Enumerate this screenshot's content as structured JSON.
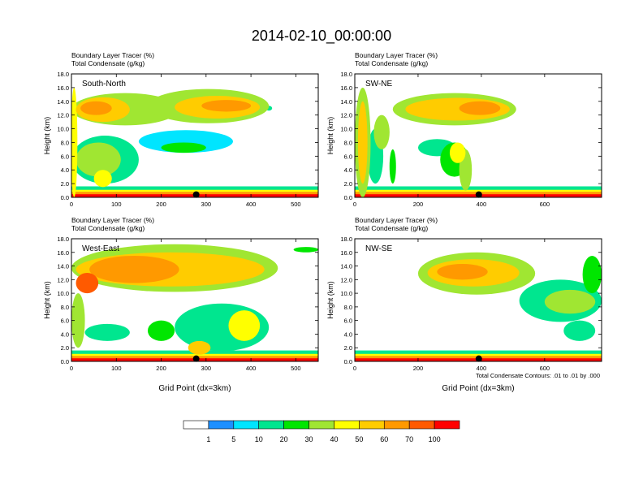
{
  "figure": {
    "title": "2014-02-10_00:00:00",
    "contour_note": "Total Condensate Contours: .01 to .01 by .000"
  },
  "chart_data": [
    {
      "type": "heatmap",
      "panel_label": "South-North",
      "subtitle_line1": "Boundary Layer Tracer    (%)",
      "subtitle_line2": "Total Condensate    (g/kg)",
      "ylabel": "Height (km)",
      "xlabel": "",
      "xlim": [
        0,
        550
      ],
      "ylim": [
        0,
        18
      ],
      "xticks": [
        0,
        100,
        200,
        300,
        400,
        500
      ],
      "yticks": [
        "0.0",
        "2.0",
        "4.0",
        "6.0",
        "8.0",
        "10.0",
        "12.0",
        "14.0",
        "16.0",
        "18.0"
      ],
      "marker_x": 278,
      "blobs": [
        {
          "x": [
            0,
            12
          ],
          "y": [
            0,
            16
          ],
          "level": 6
        },
        {
          "x": [
            0,
            240
          ],
          "y": [
            10.5,
            15.2
          ],
          "level": 5
        },
        {
          "x": [
            10,
            130
          ],
          "y": [
            11,
            14.6
          ],
          "level": 7
        },
        {
          "x": [
            170,
            440
          ],
          "y": [
            10.8,
            15.8
          ],
          "level": 5
        },
        {
          "x": [
            230,
            420
          ],
          "y": [
            11.5,
            14.8
          ],
          "level": 7
        },
        {
          "x": [
            290,
            400
          ],
          "y": [
            12.5,
            14.2
          ],
          "level": 8
        },
        {
          "x": [
            20,
            90
          ],
          "y": [
            12,
            14
          ],
          "level": 8
        },
        {
          "x": [
            440,
            440
          ],
          "y": [
            13,
            13
          ],
          "level": 3
        },
        {
          "x": [
            150,
            360
          ],
          "y": [
            6.5,
            9.8
          ],
          "level": 2
        },
        {
          "x": [
            0,
            150
          ],
          "y": [
            2,
            9
          ],
          "level": 3
        },
        {
          "x": [
            10,
            110
          ],
          "y": [
            3,
            8
          ],
          "level": 5
        },
        {
          "x": [
            50,
            90
          ],
          "y": [
            1.5,
            4
          ],
          "level": 6
        },
        {
          "x": [
            200,
            300
          ],
          "y": [
            6.5,
            8
          ],
          "level": 4
        }
      ]
    },
    {
      "type": "heatmap",
      "panel_label": "SW-NE",
      "subtitle_line1": "Boundary Layer Tracer    (%)",
      "subtitle_line2": "Total Condensate    (g/kg)",
      "ylabel": "Height (km)",
      "xlabel": "",
      "xlim": [
        0,
        780
      ],
      "ylim": [
        0,
        18
      ],
      "xticks": [
        0,
        200,
        400,
        600
      ],
      "yticks": [
        "0.0",
        "2.0",
        "4.0",
        "6.0",
        "8.0",
        "10.0",
        "12.0",
        "14.0",
        "16.0",
        "18.0"
      ],
      "marker_x": 392,
      "blobs": [
        {
          "x": [
            120,
            510
          ],
          "y": [
            10.5,
            15.2
          ],
          "level": 5
        },
        {
          "x": [
            160,
            490
          ],
          "y": [
            11.2,
            14.5
          ],
          "level": 7
        },
        {
          "x": [
            330,
            460
          ],
          "y": [
            12,
            14
          ],
          "level": 8
        },
        {
          "x": [
            0,
            50
          ],
          "y": [
            0,
            16
          ],
          "level": 5
        },
        {
          "x": [
            10,
            40
          ],
          "y": [
            2,
            14
          ],
          "level": 7
        },
        {
          "x": [
            40,
            90
          ],
          "y": [
            2,
            10
          ],
          "level": 3
        },
        {
          "x": [
            60,
            110
          ],
          "y": [
            7,
            12
          ],
          "level": 5
        },
        {
          "x": [
            270,
            360
          ],
          "y": [
            3,
            8
          ],
          "level": 4
        },
        {
          "x": [
            300,
            350
          ],
          "y": [
            5,
            8
          ],
          "level": 6
        },
        {
          "x": [
            200,
            320
          ],
          "y": [
            6,
            8.5
          ],
          "level": 3
        },
        {
          "x": [
            330,
            370
          ],
          "y": [
            1,
            7
          ],
          "level": 5
        },
        {
          "x": [
            110,
            130
          ],
          "y": [
            2,
            7
          ],
          "level": 4
        }
      ]
    },
    {
      "type": "heatmap",
      "panel_label": "West-East",
      "subtitle_line1": "Boundary Layer Tracer    (%)",
      "subtitle_line2": "Total Condensate    (g/kg)",
      "ylabel": "Height (km)",
      "xlabel": "Grid Point (dx=3km)",
      "xlim": [
        0,
        550
      ],
      "ylim": [
        0,
        18
      ],
      "xticks": [
        0,
        100,
        200,
        300,
        400,
        500
      ],
      "yticks": [
        "0.0",
        "2.0",
        "4.0",
        "6.0",
        "8.0",
        "10.0",
        "12.0",
        "14.0",
        "16.0",
        "18.0"
      ],
      "marker_x": 278,
      "blobs": [
        {
          "x": [
            0,
            460
          ],
          "y": [
            10.2,
            17.2
          ],
          "level": 5
        },
        {
          "x": [
            10,
            430
          ],
          "y": [
            11,
            16
          ],
          "level": 7
        },
        {
          "x": [
            40,
            240
          ],
          "y": [
            11.5,
            15.5
          ],
          "level": 8
        },
        {
          "x": [
            10,
            60
          ],
          "y": [
            10,
            13
          ],
          "level": 9
        },
        {
          "x": [
            0,
            30
          ],
          "y": [
            2,
            10
          ],
          "level": 5
        },
        {
          "x": [
            30,
            130
          ],
          "y": [
            3,
            5.5
          ],
          "level": 3
        },
        {
          "x": [
            170,
            230
          ],
          "y": [
            3,
            6
          ],
          "level": 4
        },
        {
          "x": [
            230,
            440
          ],
          "y": [
            1.5,
            8.5
          ],
          "level": 3
        },
        {
          "x": [
            350,
            420
          ],
          "y": [
            3,
            7.5
          ],
          "level": 6
        },
        {
          "x": [
            260,
            310
          ],
          "y": [
            1,
            3
          ],
          "level": 7
        },
        {
          "x": [
            495,
            550
          ],
          "y": [
            16,
            16.8
          ],
          "level": 4
        }
      ]
    },
    {
      "type": "heatmap",
      "panel_label": "NW-SE",
      "subtitle_line1": "Boundary Layer Tracer    (%)",
      "subtitle_line2": "Total Condensate    (g/kg)",
      "ylabel": "Height (km)",
      "xlabel": "Grid Point (dx=3km)",
      "xlim": [
        0,
        780
      ],
      "ylim": [
        0,
        18
      ],
      "xticks": [
        0,
        200,
        400,
        600
      ],
      "yticks": [
        "0.0",
        "2.0",
        "4.0",
        "6.0",
        "8.0",
        "10.0",
        "12.0",
        "14.0",
        "16.0",
        "18.0"
      ],
      "marker_x": 392,
      "blobs": [
        {
          "x": [
            200,
            570
          ],
          "y": [
            9.8,
            16
          ],
          "level": 5
        },
        {
          "x": [
            230,
            520
          ],
          "y": [
            11,
            15
          ],
          "level": 7
        },
        {
          "x": [
            260,
            420
          ],
          "y": [
            12,
            14.3
          ],
          "level": 8
        },
        {
          "x": [
            520,
            780
          ],
          "y": [
            5.8,
            12
          ],
          "level": 3
        },
        {
          "x": [
            600,
            760
          ],
          "y": [
            7,
            10.5
          ],
          "level": 5
        },
        {
          "x": [
            660,
            760
          ],
          "y": [
            3,
            6
          ],
          "level": 3
        },
        {
          "x": [
            720,
            780
          ],
          "y": [
            10,
            15.5
          ],
          "level": 4
        }
      ]
    }
  ],
  "colorbar": {
    "labels": [
      "1",
      "5",
      "10",
      "20",
      "30",
      "40",
      "50",
      "60",
      "70",
      "100"
    ],
    "colors": [
      "#ffffff",
      "#1e90ff",
      "#00e5ff",
      "#00e68f",
      "#00e600",
      "#a0e632",
      "#ffff00",
      "#ffcc00",
      "#ff9900",
      "#ff5a00",
      "#ff0000"
    ]
  }
}
